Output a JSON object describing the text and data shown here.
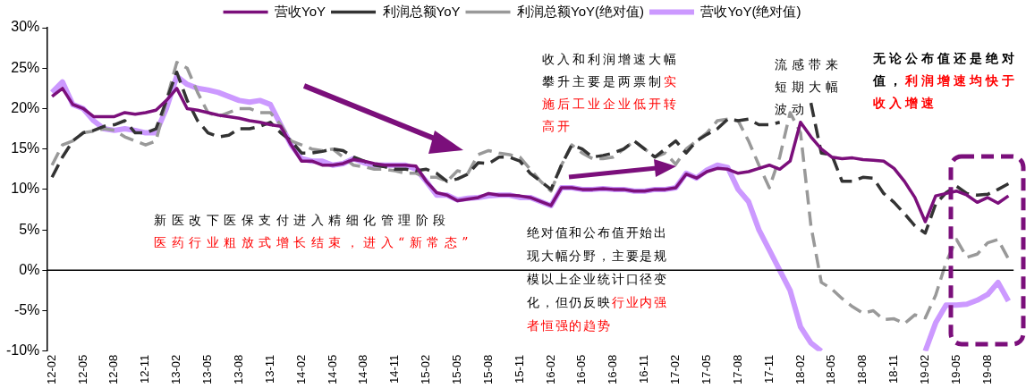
{
  "chart_data": {
    "type": "line",
    "categories": [
      "12-02",
      null,
      null,
      "12-05",
      null,
      null,
      "12-08",
      null,
      null,
      "12-11",
      null,
      null,
      "13-02",
      null,
      null,
      "13-05",
      null,
      null,
      "13-08",
      null,
      null,
      "13-11",
      null,
      null,
      "14-02",
      null,
      null,
      "14-05",
      null,
      null,
      "14-08",
      null,
      null,
      "14-11",
      null,
      null,
      "15-02",
      null,
      null,
      "15-05",
      null,
      null,
      "15-08",
      null,
      null,
      "15-11",
      null,
      null,
      "16-02",
      null,
      null,
      "16-05",
      null,
      null,
      "16-08",
      null,
      null,
      "16-11",
      null,
      null,
      "17-02",
      null,
      null,
      "17-05",
      null,
      null,
      "17-08",
      null,
      null,
      "17-11",
      null,
      null,
      "18-02",
      null,
      null,
      "18-05",
      null,
      null,
      "18-08",
      null,
      null,
      "18-11",
      null,
      null,
      "19-02",
      null,
      null,
      "19-05",
      null,
      null,
      "19-08",
      null,
      null
    ],
    "series": [
      {
        "name": "营收YoY",
        "color": "#7b0f7b",
        "line_style": "solid",
        "values": [
          21.5,
          22.5,
          20.5,
          20,
          19,
          19,
          19,
          19.5,
          19.3,
          19.5,
          19.8,
          21,
          22.5,
          20,
          19.8,
          19.5,
          19.2,
          19,
          18.8,
          18.5,
          18.3,
          18,
          17.8,
          15.5,
          13.5,
          13.5,
          13,
          13,
          13.2,
          13.7,
          13.5,
          13.2,
          13,
          13,
          13,
          12.9,
          11,
          9.6,
          9.3,
          8.6,
          8.8,
          9,
          9.5,
          9.3,
          9.3,
          9.2,
          9,
          8.5,
          8,
          10.2,
          10.2,
          10,
          10,
          10.1,
          10,
          10,
          9.8,
          9.8,
          10,
          10,
          10.2,
          11.9,
          11.4,
          12.2,
          12.6,
          12.5,
          12,
          12.2,
          12.6,
          13,
          12.5,
          13.5,
          18.3,
          16.5,
          15,
          14,
          13.8,
          13.9,
          13.7,
          13.6,
          13.5,
          12.6,
          11,
          9,
          6,
          9.2,
          9.5,
          9.8,
          9.3,
          8.4,
          9,
          8.3,
          9.2
        ]
      },
      {
        "name": "营收YoY(绝对值)",
        "color": "#cc99ff",
        "line_style": "solid",
        "values": [
          22,
          23.3,
          20.5,
          20,
          18.5,
          17.5,
          17.3,
          17.5,
          17.3,
          17,
          17,
          20,
          24,
          23,
          22.5,
          22.3,
          22,
          21.5,
          21,
          20.8,
          21,
          20.5,
          18,
          15.5,
          13.8,
          13.5,
          13.5,
          13,
          13.2,
          13.8,
          13.3,
          13,
          13,
          13,
          13,
          12.5,
          11,
          9.3,
          9.3,
          8.7,
          8.9,
          9,
          9.2,
          9.3,
          9.3,
          9,
          9,
          8.5,
          8,
          10.2,
          10.2,
          10,
          10,
          10.1,
          10,
          10,
          9.8,
          9.8,
          10,
          10,
          10.2,
          12,
          11.4,
          12.4,
          13,
          12.7,
          10,
          8.5,
          5,
          2.5,
          0,
          -2.5,
          -7,
          -9,
          -10,
          null,
          null,
          null,
          null,
          null,
          null,
          null,
          null,
          null,
          -10,
          -6.5,
          -4.3,
          -4.3,
          -4.2,
          -3.7,
          -3,
          -1.5,
          -3.8
        ]
      },
      {
        "name": "利润总额YoY",
        "color": "#333333",
        "line_style": "dashed",
        "values": [
          11.5,
          14,
          16,
          17,
          17.3,
          17.8,
          18,
          18.5,
          17,
          17,
          17.5,
          21,
          24.5,
          21,
          18.5,
          17,
          16.5,
          16.7,
          17.5,
          17.5,
          17.8,
          18.3,
          17,
          16,
          14.5,
          14.5,
          14.7,
          15,
          14.8,
          14,
          13.5,
          13,
          12.8,
          12.5,
          12.5,
          12.3,
          12.5,
          12,
          11,
          11.3,
          11.9,
          13.3,
          13.2,
          14,
          14,
          13.5,
          12,
          11,
          10,
          13,
          15.5,
          15,
          14,
          14.2,
          14.5,
          15,
          16,
          15,
          14,
          15,
          16,
          14.5,
          16,
          16.8,
          17.5,
          18.7,
          18.5,
          18.7,
          18,
          18,
          18.3,
          null,
          null,
          20.7,
          14.5,
          14.3,
          11,
          11,
          11.5,
          11.4,
          9.5,
          8.4,
          7,
          5.5,
          4.6,
          8.2,
          9.6,
          10.4,
          9.5,
          9.3,
          9.4,
          10,
          10.7
        ]
      },
      {
        "name": "利润总额YoY(绝对值)",
        "color": "#999999",
        "line_style": "dashed",
        "values": [
          13,
          15.5,
          16,
          17,
          17.2,
          17.5,
          17.3,
          16.5,
          16,
          15.5,
          16,
          21,
          25.7,
          25,
          22,
          19.5,
          19,
          19.5,
          20,
          20,
          19.5,
          19.5,
          18,
          16,
          15.5,
          15,
          14.8,
          15,
          14,
          13,
          12.8,
          12.5,
          12.5,
          12.3,
          12,
          12,
          11.5,
          11.5,
          11,
          12.3,
          12,
          14.3,
          14.8,
          14.5,
          14.3,
          14,
          12.5,
          11,
          9.8,
          13,
          15.5,
          14.5,
          13.8,
          13.8,
          14,
          15,
          16,
          15,
          14,
          14.5,
          13.1,
          15,
          16,
          17,
          18.5,
          18.7,
          18.5,
          16,
          13,
          10.2,
          14,
          19.5,
          17,
          5.5,
          -1.5,
          -2.3,
          -3.5,
          -4.5,
          -5.3,
          -5,
          -6.1,
          -6,
          -6.6,
          -5.5,
          -5.9,
          -3.1,
          1,
          3.8,
          1.6,
          2,
          3.4,
          3.8,
          1.4
        ]
      }
    ],
    "ylim": [
      -10,
      30
    ],
    "yticks": [
      {
        "value": -10,
        "label": "-10%"
      },
      {
        "value": -5,
        "label": "-5%"
      },
      {
        "value": 0,
        "label": "0%"
      },
      {
        "value": 5,
        "label": "5%"
      },
      {
        "value": 10,
        "label": "10%"
      },
      {
        "value": 15,
        "label": "15%"
      },
      {
        "value": 20,
        "label": "20%"
      },
      {
        "value": 25,
        "label": "25%"
      },
      {
        "value": 30,
        "label": "30%"
      }
    ],
    "ref_lines": [
      {
        "axis": "y",
        "value": 0,
        "color": "#000000"
      }
    ],
    "grid": false,
    "legend": "top",
    "marker": "none",
    "annotations": [
      "新医改下医保支付进入精细化管理阶段",
      "医药行业粗放式增长结束，进入“新常态”",
      "收入和利润增速大幅攀升主要是两票制",
      "实施后工业企业低开转高开",
      "流感带来短期大幅波动",
      "绝对值和公布值开始出现大幅分野，主要是规模以上企业统计口径变化，但仍反映",
      "行业内强者恒强的趋势",
      "无论公布值还是绝对值，",
      "利润增速均快于收入增速"
    ]
  }
}
